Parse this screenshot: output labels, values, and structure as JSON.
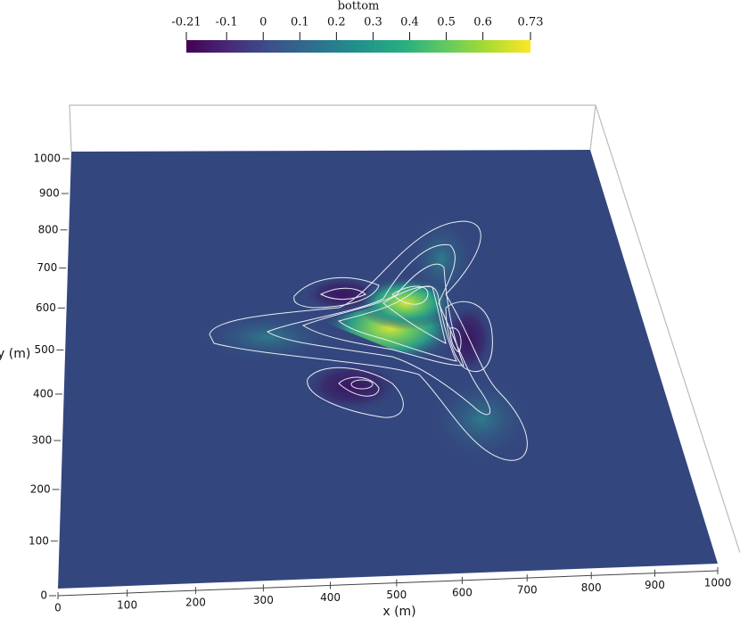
{
  "colorbar": {
    "title": "bottom",
    "range": [
      -0.21,
      0.73
    ],
    "ticks": [
      -0.21,
      -0.1,
      0,
      0.1,
      0.2,
      0.3,
      0.4,
      0.5,
      0.6,
      0.73
    ]
  },
  "x_axis": {
    "label": "x (m)",
    "xlim": [
      0,
      1000
    ],
    "xticks": [
      0,
      100,
      200,
      300,
      400,
      500,
      600,
      700,
      800,
      900,
      1000
    ]
  },
  "y_axis": {
    "label": "y (m)",
    "ylim": [
      0,
      1000
    ],
    "yticks": [
      0,
      100,
      200,
      300,
      400,
      500,
      600,
      700,
      800,
      900,
      1000
    ]
  }
}
